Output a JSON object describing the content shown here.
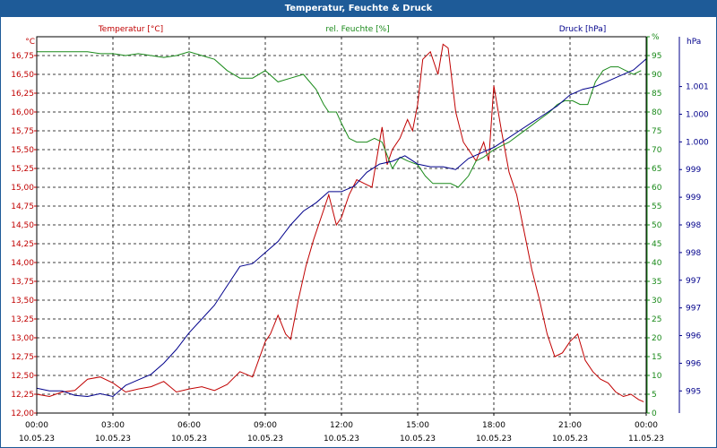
{
  "title": "Temperatur, Feuchte & Druck",
  "chart_data": {
    "type": "line",
    "title": "Temperatur, Feuchte & Druck",
    "x_ticks": [
      {
        "time": "00:00",
        "date": "10.05.23"
      },
      {
        "time": "03:00",
        "date": "10.05.23"
      },
      {
        "time": "06:00",
        "date": "10.05.23"
      },
      {
        "time": "09:00",
        "date": "10.05.23"
      },
      {
        "time": "12:00",
        "date": "10.05.23"
      },
      {
        "time": "15:00",
        "date": "10.05.23"
      },
      {
        "time": "18:00",
        "date": "10.05.23"
      },
      {
        "time": "21:00",
        "date": "10.05.23"
      },
      {
        "time": "00:00",
        "date": "11.05.23"
      }
    ],
    "xlim": [
      0,
      24
    ],
    "axes": {
      "temperature": {
        "unit": "°C",
        "label": "Temperatur [°C]",
        "color": "#c00000",
        "ylim": [
          12.0,
          17.0
        ],
        "ticks": [
          "12,00",
          "12,25",
          "12,50",
          "12,75",
          "13,00",
          "13,25",
          "13,50",
          "13,75",
          "14,00",
          "14,25",
          "14,50",
          "14,75",
          "15,00",
          "15,25",
          "15,50",
          "15,75",
          "16,00",
          "16,25",
          "16,50",
          "16,75"
        ]
      },
      "humidity": {
        "unit": "%",
        "label": "rel. Feuchte [%]",
        "color": "#1a8a1a",
        "ylim": [
          0,
          100
        ],
        "ticks": [
          "0",
          "5",
          "10",
          "15",
          "20",
          "25",
          "30",
          "35",
          "40",
          "45",
          "50",
          "55",
          "60",
          "65",
          "70",
          "75",
          "80",
          "85",
          "90",
          "95",
          "%"
        ]
      },
      "pressure": {
        "unit": "hPa",
        "label": "Druck [hPa]",
        "color": "#00008b",
        "ylim": [
          994.6,
          1001.4
        ],
        "ticks": [
          {
            "v": 995.0,
            "label": "995"
          },
          {
            "v": 995.5,
            "label": "996"
          },
          {
            "v": 996.0,
            "label": "996"
          },
          {
            "v": 996.5,
            "label": "997"
          },
          {
            "v": 997.0,
            "label": "997"
          },
          {
            "v": 997.5,
            "label": "998"
          },
          {
            "v": 998.0,
            "label": "998"
          },
          {
            "v": 998.5,
            "label": "999"
          },
          {
            "v": 999.0,
            "label": "999"
          },
          {
            "v": 999.5,
            "label": "1.000"
          },
          {
            "v": 1000.0,
            "label": "1.000"
          },
          {
            "v": 1000.5,
            "label": "1.001"
          }
        ]
      }
    },
    "series": [
      {
        "name": "Temperatur [°C]",
        "axis": "temperature",
        "color": "#c00000",
        "x": [
          0,
          0.5,
          1.0,
          1.5,
          2.0,
          2.5,
          3.0,
          3.5,
          4.0,
          4.5,
          5.0,
          5.5,
          6.0,
          6.5,
          7.0,
          7.5,
          8.0,
          8.5,
          9.0,
          9.2,
          9.5,
          9.8,
          10.0,
          10.3,
          10.6,
          10.9,
          11.2,
          11.5,
          11.8,
          12.0,
          12.3,
          12.6,
          12.9,
          13.2,
          13.6,
          13.8,
          14.0,
          14.3,
          14.6,
          14.8,
          15.0,
          15.2,
          15.5,
          15.8,
          16.0,
          16.2,
          16.5,
          16.8,
          17.0,
          17.3,
          17.6,
          17.8,
          18.0,
          18.3,
          18.6,
          18.9,
          19.2,
          19.5,
          19.8,
          20.1,
          20.4,
          20.7,
          21.0,
          21.3,
          21.6,
          21.9,
          22.2,
          22.5,
          22.8,
          23.1,
          23.4,
          23.7,
          23.9
        ],
        "values": [
          12.25,
          12.22,
          12.28,
          12.3,
          12.45,
          12.48,
          12.4,
          12.28,
          12.32,
          12.35,
          12.42,
          12.28,
          12.32,
          12.35,
          12.3,
          12.38,
          12.55,
          12.48,
          12.95,
          13.05,
          13.3,
          13.05,
          12.98,
          13.5,
          13.95,
          14.3,
          14.6,
          14.9,
          14.5,
          14.6,
          14.9,
          15.1,
          15.05,
          15.0,
          15.8,
          15.3,
          15.5,
          15.65,
          15.9,
          15.75,
          16.1,
          16.7,
          16.8,
          16.5,
          16.9,
          16.85,
          16.0,
          15.6,
          15.5,
          15.35,
          15.6,
          15.35,
          16.35,
          15.75,
          15.2,
          14.9,
          14.4,
          13.9,
          13.5,
          13.05,
          12.75,
          12.8,
          12.95,
          13.05,
          12.7,
          12.55,
          12.45,
          12.4,
          12.28,
          12.22,
          12.25,
          12.18,
          12.15
        ]
      },
      {
        "name": "rel. Feuchte [%]",
        "axis": "humidity",
        "color": "#1a8a1a",
        "x": [
          0,
          0.5,
          1.0,
          1.5,
          2.0,
          2.5,
          3.0,
          3.5,
          4.0,
          4.5,
          5.0,
          5.5,
          6.0,
          6.5,
          7.0,
          7.5,
          8.0,
          8.5,
          9.0,
          9.5,
          10.0,
          10.5,
          11.0,
          11.3,
          11.5,
          11.8,
          12.0,
          12.3,
          12.6,
          13.0,
          13.3,
          13.6,
          14.0,
          14.3,
          14.6,
          15.0,
          15.3,
          15.6,
          16.0,
          16.3,
          16.6,
          17.0,
          17.3,
          17.6,
          18.0,
          18.3,
          18.6,
          19.0,
          19.4,
          19.8,
          20.2,
          20.5,
          20.8,
          21.1,
          21.4,
          21.7,
          22.0,
          22.3,
          22.6,
          22.9,
          23.2,
          23.5,
          23.8
        ],
        "values": [
          96,
          96,
          96,
          96,
          96,
          95.5,
          95.5,
          95,
          95.5,
          95,
          94.5,
          95,
          96,
          95,
          94,
          91,
          89,
          89,
          91,
          88,
          89,
          90,
          86,
          82,
          80,
          80,
          77,
          73,
          72,
          72,
          73,
          72,
          65,
          68,
          67,
          66,
          63,
          61,
          61,
          61,
          60,
          63,
          67,
          68,
          70,
          71,
          72,
          74,
          76,
          78,
          80,
          82,
          83,
          83,
          82,
          82,
          88,
          91,
          92,
          92,
          91,
          90,
          91
        ]
      },
      {
        "name": "Druck [hPa]",
        "axis": "pressure",
        "color": "#00008b",
        "x": [
          0,
          0.5,
          1.0,
          1.5,
          2.0,
          2.5,
          3.0,
          3.5,
          4.0,
          4.5,
          5.0,
          5.5,
          6.0,
          6.5,
          7.0,
          7.5,
          8.0,
          8.5,
          9.0,
          9.5,
          10.0,
          10.5,
          11.0,
          11.5,
          12.0,
          12.5,
          13.0,
          13.5,
          14.0,
          14.5,
          15.0,
          15.5,
          16.0,
          16.5,
          17.0,
          17.5,
          18.0,
          18.5,
          19.0,
          19.5,
          20.0,
          20.5,
          21.0,
          21.5,
          22.0,
          22.5,
          23.0,
          23.5,
          24.0
        ],
        "values": [
          995.05,
          995.0,
          995.0,
          994.92,
          994.9,
          994.95,
          994.9,
          995.1,
          995.2,
          995.3,
          995.5,
          995.75,
          996.05,
          996.3,
          996.55,
          996.9,
          997.25,
          997.3,
          997.5,
          997.7,
          998.0,
          998.25,
          998.4,
          998.6,
          998.6,
          998.7,
          998.95,
          999.1,
          999.15,
          999.25,
          999.1,
          999.05,
          999.05,
          999.0,
          999.2,
          999.3,
          999.4,
          999.55,
          999.7,
          999.85,
          1000.0,
          1000.15,
          1000.35,
          1000.45,
          1000.5,
          1000.6,
          1000.7,
          1000.8,
          1001.0
        ]
      }
    ]
  }
}
